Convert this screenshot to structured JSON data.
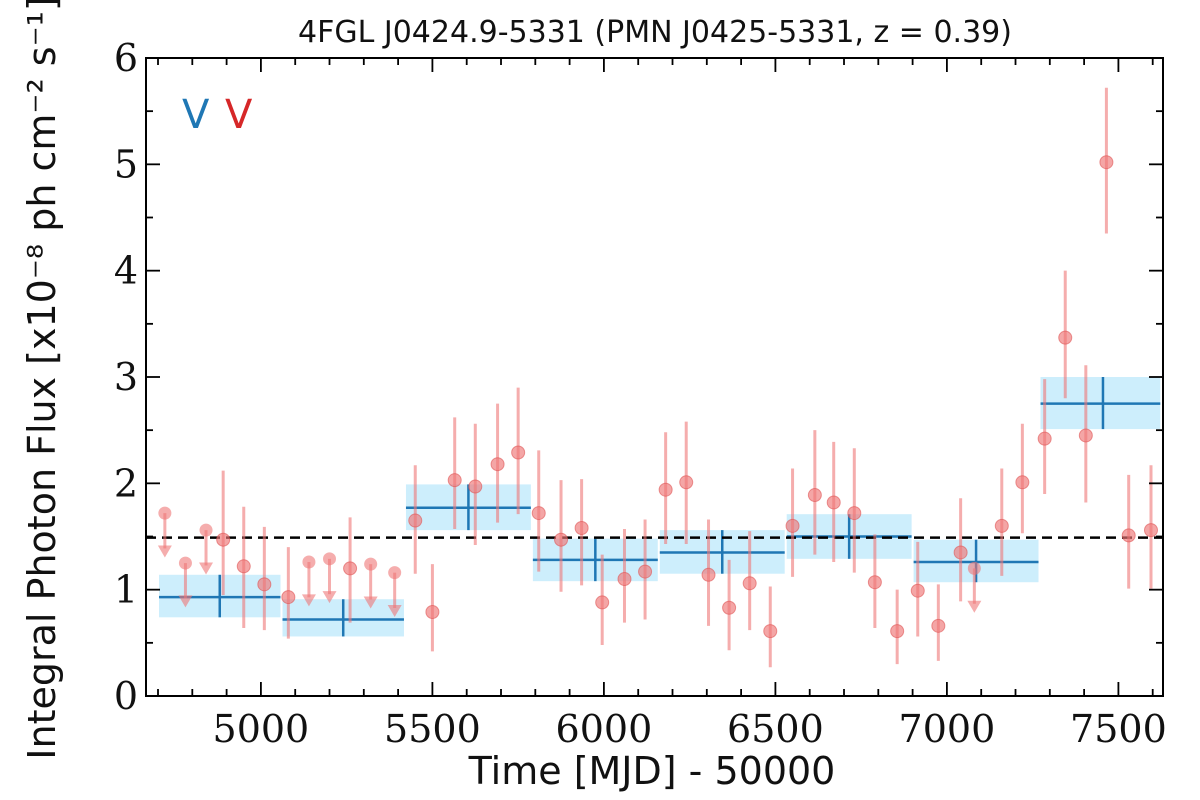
{
  "chart_data": {
    "type": "scatter",
    "title": "4FGL J0424.9-5331 (PMN J0425-5331, z = 0.39)",
    "xlabel": "Time [MJD] - 50000",
    "ylabel": "Integral Photon Flux [x10⁻⁸ ph cm⁻² s⁻¹]",
    "xlim": [
      4665,
      7630
    ],
    "ylim": [
      0,
      6
    ],
    "x_ticks": [
      "5000",
      "5500",
      "6000",
      "6500",
      "7000",
      "7500"
    ],
    "y_ticks": [
      "0",
      "1",
      "2",
      "3",
      "4",
      "5",
      "6"
    ],
    "reference_line": 1.49,
    "legend": [
      {
        "label": "V",
        "color": "#1f77b4"
      },
      {
        "label": "V",
        "color": "#d62728"
      }
    ],
    "colors": {
      "bins_line": "#1f77b4",
      "bins_fill": "#cdeefc",
      "points": "#ee7777",
      "reference": "#000000"
    },
    "upper_limits": [
      {
        "x": 4720,
        "y": 1.72,
        "y_arrow": 1.35
      },
      {
        "x": 4780,
        "y": 1.25,
        "y_arrow": 0.88
      },
      {
        "x": 4840,
        "y": 1.56,
        "y_arrow": 1.19
      },
      {
        "x": 5140,
        "y": 1.26,
        "y_arrow": 0.89
      },
      {
        "x": 5200,
        "y": 1.29,
        "y_arrow": 0.92
      },
      {
        "x": 5320,
        "y": 1.24,
        "y_arrow": 0.87
      },
      {
        "x": 5390,
        "y": 1.16,
        "y_arrow": 0.79
      },
      {
        "x": 7080,
        "y": 1.2,
        "y_arrow": 0.83
      }
    ],
    "points": [
      {
        "x": 4890,
        "y": 1.47,
        "err_lo": 0.52,
        "err_hi": 0.65
      },
      {
        "x": 4950,
        "y": 1.22,
        "err_lo": 0.58,
        "err_hi": 0.56
      },
      {
        "x": 5010,
        "y": 1.05,
        "err_lo": 0.43,
        "err_hi": 0.54
      },
      {
        "x": 5080,
        "y": 0.93,
        "err_lo": 0.39,
        "err_hi": 0.47
      },
      {
        "x": 5260,
        "y": 1.2,
        "err_lo": 0.51,
        "err_hi": 0.48
      },
      {
        "x": 5450,
        "y": 1.65,
        "err_lo": 0.5,
        "err_hi": 0.52
      },
      {
        "x": 5500,
        "y": 0.79,
        "err_lo": 0.37,
        "err_hi": 0.45
      },
      {
        "x": 5565,
        "y": 2.03,
        "err_lo": 0.46,
        "err_hi": 0.59
      },
      {
        "x": 5625,
        "y": 1.97,
        "err_lo": 0.55,
        "err_hi": 0.59
      },
      {
        "x": 5690,
        "y": 2.18,
        "err_lo": 0.55,
        "err_hi": 0.57
      },
      {
        "x": 5750,
        "y": 2.29,
        "err_lo": 0.58,
        "err_hi": 0.61
      },
      {
        "x": 5810,
        "y": 1.72,
        "err_lo": 0.55,
        "err_hi": 0.59
      },
      {
        "x": 5875,
        "y": 1.47,
        "err_lo": 0.49,
        "err_hi": 0.56
      },
      {
        "x": 5935,
        "y": 1.58,
        "err_lo": 0.54,
        "err_hi": 0.46
      },
      {
        "x": 5995,
        "y": 0.88,
        "err_lo": 0.4,
        "err_hi": 0.45
      },
      {
        "x": 6060,
        "y": 1.1,
        "err_lo": 0.41,
        "err_hi": 0.47
      },
      {
        "x": 6120,
        "y": 1.17,
        "err_lo": 0.45,
        "err_hi": 0.49
      },
      {
        "x": 6180,
        "y": 1.94,
        "err_lo": 0.51,
        "err_hi": 0.54
      },
      {
        "x": 6240,
        "y": 2.01,
        "err_lo": 0.58,
        "err_hi": 0.57
      },
      {
        "x": 6305,
        "y": 1.14,
        "err_lo": 0.48,
        "err_hi": 0.52
      },
      {
        "x": 6365,
        "y": 0.83,
        "err_lo": 0.4,
        "err_hi": 0.45
      },
      {
        "x": 6425,
        "y": 1.06,
        "err_lo": 0.44,
        "err_hi": 0.49
      },
      {
        "x": 6485,
        "y": 0.61,
        "err_lo": 0.34,
        "err_hi": 0.42
      },
      {
        "x": 6550,
        "y": 1.6,
        "err_lo": 0.48,
        "err_hi": 0.54
      },
      {
        "x": 6615,
        "y": 1.89,
        "err_lo": 0.56,
        "err_hi": 0.61
      },
      {
        "x": 6670,
        "y": 1.82,
        "err_lo": 0.56,
        "err_hi": 0.57
      },
      {
        "x": 6730,
        "y": 1.72,
        "err_lo": 0.56,
        "err_hi": 0.61
      },
      {
        "x": 6790,
        "y": 1.07,
        "err_lo": 0.43,
        "err_hi": 0.45
      },
      {
        "x": 6855,
        "y": 0.61,
        "err_lo": 0.31,
        "err_hi": 0.39
      },
      {
        "x": 6915,
        "y": 0.99,
        "err_lo": 0.43,
        "err_hi": 0.46
      },
      {
        "x": 6975,
        "y": 0.66,
        "err_lo": 0.33,
        "err_hi": 0.39
      },
      {
        "x": 7040,
        "y": 1.35,
        "err_lo": 0.46,
        "err_hi": 0.51
      },
      {
        "x": 7160,
        "y": 1.6,
        "err_lo": 0.47,
        "err_hi": 0.54
      },
      {
        "x": 7220,
        "y": 2.01,
        "err_lo": 0.48,
        "err_hi": 0.55
      },
      {
        "x": 7285,
        "y": 2.42,
        "err_lo": 0.52,
        "err_hi": 0.56
      },
      {
        "x": 7345,
        "y": 3.37,
        "err_lo": 0.57,
        "err_hi": 0.63
      },
      {
        "x": 7405,
        "y": 2.45,
        "err_lo": 0.63,
        "err_hi": 0.66
      },
      {
        "x": 7465,
        "y": 5.02,
        "err_lo": 0.67,
        "err_hi": 0.7
      },
      {
        "x": 7530,
        "y": 1.51,
        "err_lo": 0.5,
        "err_hi": 0.57
      },
      {
        "x": 7595,
        "y": 1.56,
        "err_lo": 0.55,
        "err_hi": 0.61
      }
    ],
    "bins": [
      {
        "x_start": 4700,
        "x_end": 5060,
        "x_center": 4880,
        "y": 0.93,
        "y_lo": 0.74,
        "y_hi": 1.14
      },
      {
        "x_start": 5060,
        "x_end": 5420,
        "x_center": 5240,
        "y": 0.72,
        "y_lo": 0.56,
        "y_hi": 0.91
      },
      {
        "x_start": 5420,
        "x_end": 5790,
        "x_center": 5605,
        "y": 1.77,
        "y_lo": 1.56,
        "y_hi": 1.99
      },
      {
        "x_start": 5790,
        "x_end": 6160,
        "x_center": 5975,
        "y": 1.28,
        "y_lo": 1.08,
        "y_hi": 1.48
      },
      {
        "x_start": 6160,
        "x_end": 6530,
        "x_center": 6345,
        "y": 1.35,
        "y_lo": 1.15,
        "y_hi": 1.56
      },
      {
        "x_start": 6530,
        "x_end": 6900,
        "x_center": 6715,
        "y": 1.5,
        "y_lo": 1.29,
        "y_hi": 1.71
      },
      {
        "x_start": 6900,
        "x_end": 7270,
        "x_center": 7085,
        "y": 1.26,
        "y_lo": 1.07,
        "y_hi": 1.47
      },
      {
        "x_start": 7270,
        "x_end": 7640,
        "x_center": 7455,
        "y": 2.75,
        "y_lo": 2.51,
        "y_hi": 3.0
      }
    ]
  }
}
